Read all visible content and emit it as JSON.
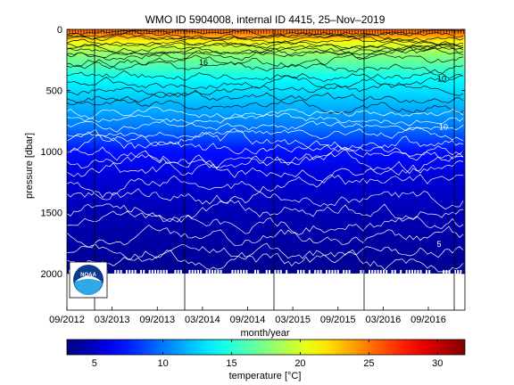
{
  "chart_data": {
    "type": "heatmap",
    "title": "WMO ID 5904008, internal ID 4415, 25–Nov–2019",
    "xlabel": "month/year",
    "ylabel": "pressure [dbar]",
    "x_ticks": [
      "09/2012",
      "03/2013",
      "09/2013",
      "03/2014",
      "09/2014",
      "03/2015",
      "09/2015",
      "03/2016",
      "09/2016"
    ],
    "y_ticks": [
      0,
      500,
      1000,
      1500,
      2000
    ],
    "ylim": [
      0,
      2300
    ],
    "y_reversed": true,
    "colorbar": {
      "label": "temperature [°C]",
      "ticks": [
        5,
        10,
        15,
        20,
        25,
        30
      ],
      "range": [
        3,
        32
      ],
      "colormap": "jet"
    },
    "contour_labels": [
      {
        "text": "16",
        "pressure": 270
      },
      {
        "text": "10",
        "pressure": 405
      },
      {
        "text": "10",
        "pressure": 800
      },
      {
        "text": "5",
        "pressure": 1760
      }
    ],
    "data_max_pressure": 2000,
    "temperature_profile": [
      {
        "pressure": 0,
        "temperature": 26
      },
      {
        "pressure": 50,
        "temperature": 24
      },
      {
        "pressure": 100,
        "temperature": 21
      },
      {
        "pressure": 200,
        "temperature": 18
      },
      {
        "pressure": 300,
        "temperature": 16
      },
      {
        "pressure": 400,
        "temperature": 14
      },
      {
        "pressure": 500,
        "temperature": 13
      },
      {
        "pressure": 600,
        "temperature": 12
      },
      {
        "pressure": 700,
        "temperature": 11
      },
      {
        "pressure": 800,
        "temperature": 10
      },
      {
        "pressure": 900,
        "temperature": 8.5
      },
      {
        "pressure": 1000,
        "temperature": 7
      },
      {
        "pressure": 1200,
        "temperature": 5.5
      },
      {
        "pressure": 1500,
        "temperature": 4.5
      },
      {
        "pressure": 2000,
        "temperature": 3.5
      }
    ],
    "grid": false,
    "legend": "none"
  },
  "logo": {
    "text": "NOAA"
  }
}
